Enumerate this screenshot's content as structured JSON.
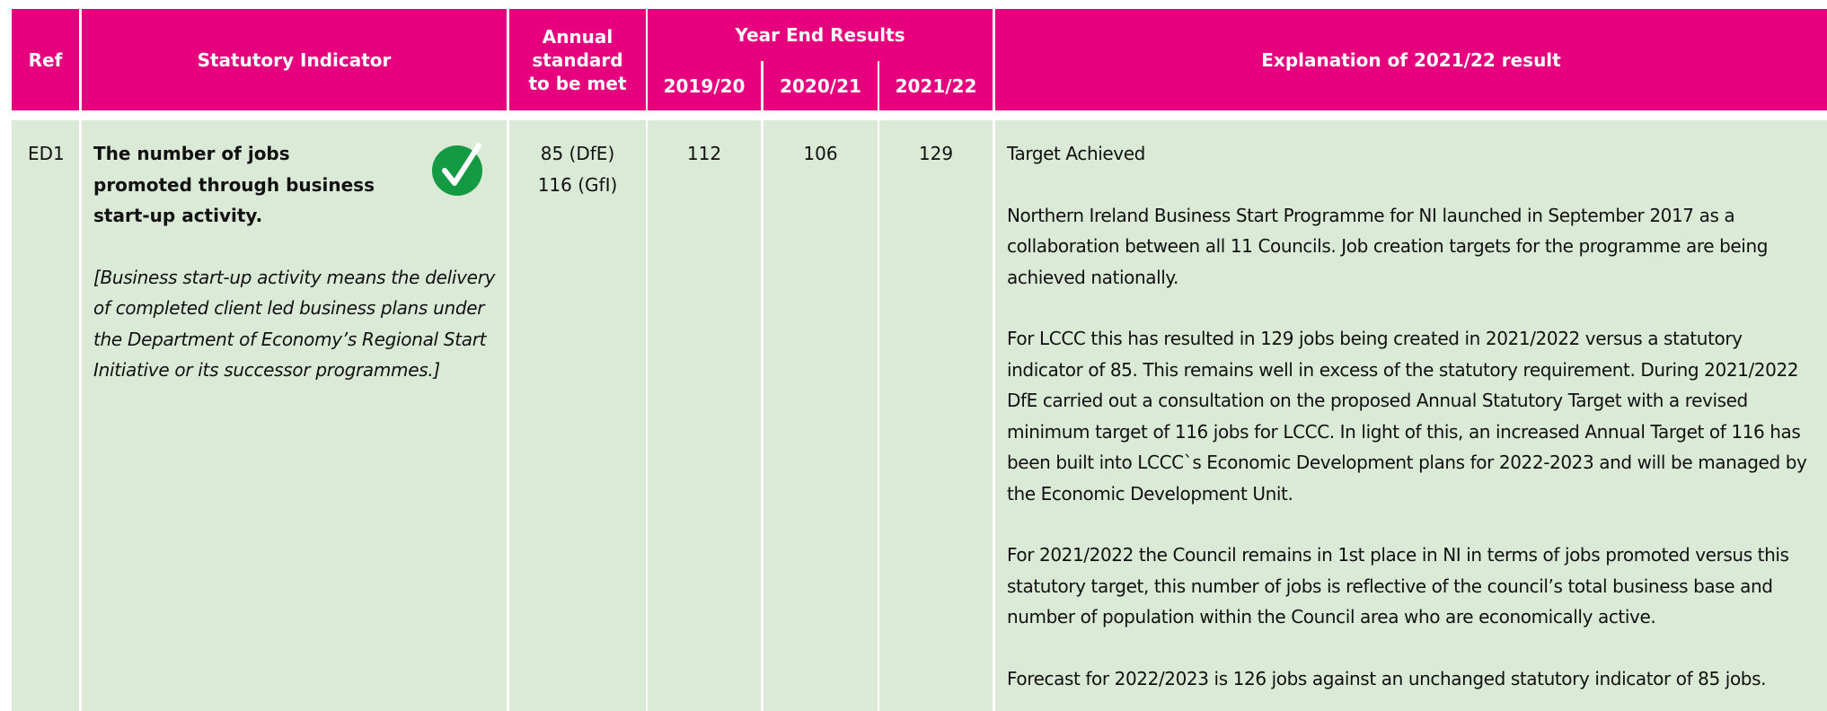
{
  "header": {
    "ref": "Ref",
    "indicator": "Statutory Indicator",
    "standard": "Annual standard to be met",
    "year_end": "Year End Results",
    "years": [
      "2019/20",
      "2020/21",
      "2021/22"
    ],
    "explanation": "Explanation of 2021/22 result"
  },
  "row": {
    "ref": "ED1",
    "indicator_title": "The number of jobs promoted through business start-up activity.",
    "indicator_note": "[Business start-up activity means the delivery of completed client led business plans under the Department of Economy’s Regional Start Initiative or its successor programmes.]",
    "standard": [
      "85 (DfE)",
      "116 (GfI)"
    ],
    "results": [
      "112",
      "106",
      "129"
    ],
    "explanation": [
      "Target Achieved",
      "Northern Ireland Business Start Programme for NI launched in September 2017 as a collaboration between all 11 Councils. Job creation targets for the programme are being achieved nationally.",
      "For LCCC this has resulted in 129 jobs being created in 2021/2022 versus a statutory indicator of 85. This remains well in excess of the statutory requirement. During 2021/2022 DfE carried out a consultation on the proposed Annual Statutory Target with a revised minimum target of 116 jobs for LCCC.  In light of this, an increased Annual Target of 116 has been built into LCCC`s Economic Development plans for 2022-2023 and will be managed by the Economic Development Unit.",
      "For 2021/2022 the Council remains in 1st place in NI in terms of jobs promoted versus this statutory target, this number of jobs is reflective of the council’s total business base and number of population within the Council area who are economically active.",
      "Forecast for 2022/2023 is 126 jobs against an unchanged statutory indicator of 85 jobs."
    ]
  }
}
